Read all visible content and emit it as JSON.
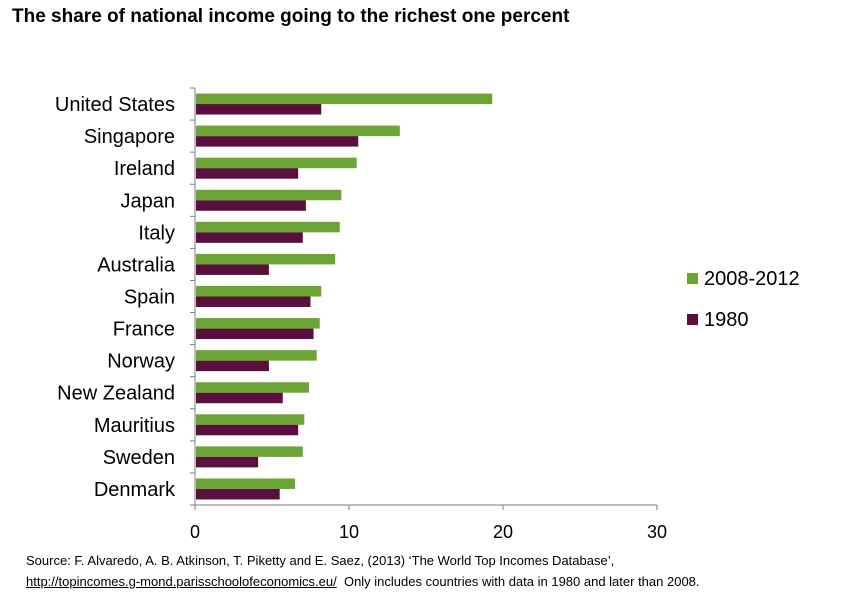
{
  "chart_data": {
    "type": "bar",
    "orientation": "horizontal",
    "title": "The share of national income going to the richest one percent",
    "categories": [
      "United States",
      "Singapore",
      "Ireland",
      "Japan",
      "Italy",
      "Australia",
      "Spain",
      "France",
      "Norway",
      "New Zealand",
      "Mauritius",
      "Sweden",
      "Denmark"
    ],
    "series": [
      {
        "name": "2008-2012",
        "color": "#6aa535",
        "values": [
          19.3,
          13.3,
          10.5,
          9.5,
          9.4,
          9.1,
          8.2,
          8.1,
          7.9,
          7.4,
          7.1,
          7.0,
          6.5
        ]
      },
      {
        "name": "1980",
        "color": "#5b0f3c",
        "values": [
          8.2,
          10.6,
          6.7,
          7.2,
          7.0,
          4.8,
          7.5,
          7.7,
          4.8,
          5.7,
          6.7,
          4.1,
          5.5
        ]
      }
    ],
    "xlim": [
      0,
      30
    ],
    "xticks": [
      0,
      10,
      20,
      30
    ],
    "xlabel": "",
    "ylabel": "",
    "legend_position": "right"
  },
  "source": {
    "text": "Source: F. Alvaredo, A. B. Atkinson, T. Piketty and E. Saez, (2013) ‘The World Top Incomes Database’,",
    "url": "http://topincomes.g-mond.parisschoolofeconomics.eu/",
    "note": "Only includes countries with data in 1980 and later than 2008."
  }
}
